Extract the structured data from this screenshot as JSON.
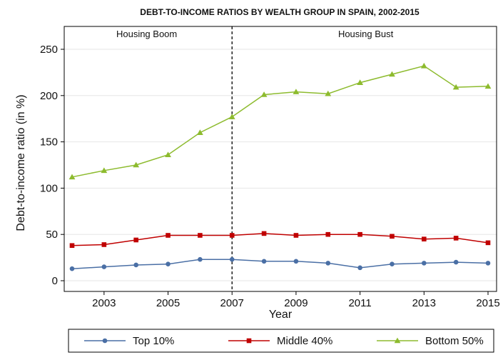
{
  "chart_data": {
    "type": "line",
    "title": "DEBT-TO-INCOME RATIOS BY WEALTH GROUP IN SPAIN, 2002-2015",
    "xlabel": "Year",
    "ylabel": "Debt-to-income ratio (in %)",
    "xlim": [
      2002,
      2015
    ],
    "ylim": [
      0,
      250
    ],
    "x_ticks": [
      2003,
      2005,
      2007,
      2009,
      2011,
      2013,
      2015
    ],
    "y_ticks": [
      0,
      50,
      100,
      150,
      200,
      250
    ],
    "grid": "horizontal",
    "x": [
      2002,
      2003,
      2004,
      2005,
      2006,
      2007,
      2008,
      2009,
      2010,
      2011,
      2012,
      2013,
      2014,
      2015
    ],
    "series": [
      {
        "name": "Top 10%",
        "color": "#4a6fa5",
        "marker": "circle",
        "values": [
          13,
          15,
          17,
          18,
          23,
          23,
          21,
          21,
          19,
          14,
          18,
          19,
          20,
          19
        ]
      },
      {
        "name": "Middle 40%",
        "color": "#c00000",
        "marker": "square",
        "values": [
          38,
          39,
          44,
          49,
          49,
          49,
          51,
          49,
          50,
          50,
          48,
          45,
          46,
          41
        ]
      },
      {
        "name": "Bottom 50%",
        "color": "#8dbb2e",
        "marker": "triangle",
        "values": [
          112,
          119,
          125,
          136,
          160,
          177,
          201,
          204,
          202,
          214,
          223,
          232,
          209,
          210
        ]
      }
    ],
    "reference_line": {
      "x": 2007,
      "style": "dashed"
    },
    "period_labels": [
      "Housing Boom",
      "Housing Bust"
    ],
    "legend_position": "bottom"
  }
}
